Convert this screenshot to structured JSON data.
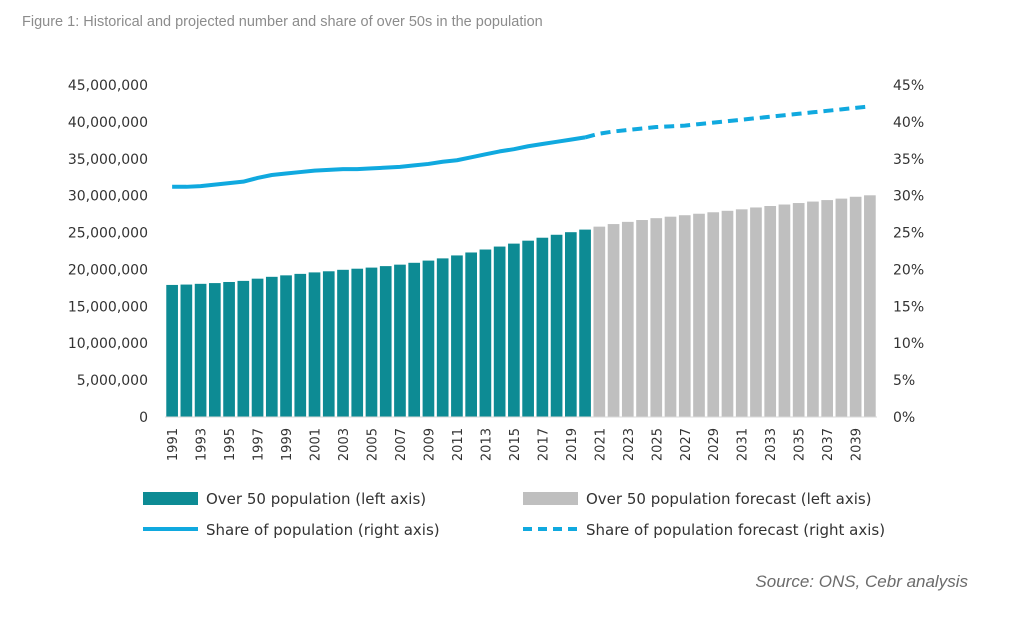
{
  "figure": {
    "title": "Figure 1: Historical and projected number and share of over 50s in the population",
    "source": "Source: ONS, Cebr analysis"
  },
  "colors": {
    "historical_bar": "#0d8b94",
    "forecast_bar": "#bfbfbf",
    "share_line": "#10a9df"
  },
  "chart_data": {
    "type": "bar",
    "x": [
      1991,
      1992,
      1993,
      1994,
      1995,
      1996,
      1997,
      1998,
      1999,
      2000,
      2001,
      2002,
      2003,
      2004,
      2005,
      2006,
      2007,
      2008,
      2009,
      2010,
      2011,
      2012,
      2013,
      2014,
      2015,
      2016,
      2017,
      2018,
      2019,
      2020,
      2021,
      2022,
      2023,
      2024,
      2025,
      2026,
      2027,
      2028,
      2029,
      2030,
      2031,
      2032,
      2033,
      2034,
      2035,
      2036,
      2037,
      2038,
      2039,
      2040
    ],
    "x_tick_labels": [
      "1991",
      "1993",
      "1995",
      "1997",
      "1999",
      "2001",
      "2003",
      "2005",
      "2007",
      "2009",
      "2011",
      "2013",
      "2015",
      "2017",
      "2019",
      "2021",
      "2023",
      "2025",
      "2027",
      "2029",
      "2031",
      "2033",
      "2035",
      "2037",
      "2039"
    ],
    "y_left": {
      "range": [
        0,
        45000000
      ],
      "ticks": [
        "0",
        "5,000,000",
        "10,000,000",
        "15,000,000",
        "20,000,000",
        "25,000,000",
        "30,000,000",
        "35,000,000",
        "40,000,000",
        "45,000,000"
      ]
    },
    "y_right": {
      "range": [
        0,
        45
      ],
      "ticks": [
        "0%",
        "5%",
        "10%",
        "15%",
        "20%",
        "25%",
        "30%",
        "35%",
        "40%",
        "45%"
      ]
    },
    "grid": false,
    "legend_position": "bottom",
    "series": [
      {
        "name": "Over 50 population (left axis)",
        "type": "bar",
        "axis": "left",
        "x": [
          1991,
          1992,
          1993,
          1994,
          1995,
          1996,
          1997,
          1998,
          1999,
          2000,
          2001,
          2002,
          2003,
          2004,
          2005,
          2006,
          2007,
          2008,
          2009,
          2010,
          2011,
          2012,
          2013,
          2014,
          2015,
          2016,
          2017,
          2018,
          2019,
          2020
        ],
        "values": [
          17900000,
          17950000,
          18050000,
          18150000,
          18300000,
          18450000,
          18750000,
          19000000,
          19200000,
          19400000,
          19600000,
          19750000,
          19950000,
          20100000,
          20250000,
          20450000,
          20650000,
          20900000,
          21200000,
          21500000,
          21900000,
          22300000,
          22700000,
          23100000,
          23500000,
          23900000,
          24300000,
          24700000,
          25050000,
          25400000
        ]
      },
      {
        "name": "Over 50 population forecast (left axis)",
        "type": "bar",
        "axis": "left",
        "x": [
          2021,
          2022,
          2023,
          2024,
          2025,
          2026,
          2027,
          2028,
          2029,
          2030,
          2031,
          2032,
          2033,
          2034,
          2035,
          2036,
          2037,
          2038,
          2039,
          2040
        ],
        "values": [
          25800000,
          26150000,
          26450000,
          26700000,
          26950000,
          27150000,
          27350000,
          27550000,
          27750000,
          27950000,
          28150000,
          28400000,
          28600000,
          28800000,
          29000000,
          29200000,
          29400000,
          29600000,
          29850000,
          30050000
        ]
      },
      {
        "name": "Share of population (right axis)",
        "type": "line",
        "axis": "right",
        "x": [
          1991,
          1992,
          1993,
          1994,
          1995,
          1996,
          1997,
          1998,
          1999,
          2000,
          2001,
          2002,
          2003,
          2004,
          2005,
          2006,
          2007,
          2008,
          2009,
          2010,
          2011,
          2012,
          2013,
          2014,
          2015,
          2016,
          2017,
          2018,
          2019,
          2020
        ],
        "values": [
          31.2,
          31.2,
          31.3,
          31.5,
          31.7,
          31.9,
          32.4,
          32.8,
          33.0,
          33.2,
          33.4,
          33.5,
          33.6,
          33.6,
          33.7,
          33.8,
          33.9,
          34.1,
          34.3,
          34.6,
          34.8,
          35.2,
          35.6,
          36.0,
          36.3,
          36.7,
          37.0,
          37.3,
          37.6,
          37.9
        ]
      },
      {
        "name": "Share of population forecast (right axis)",
        "type": "line",
        "axis": "right",
        "style": "dashed",
        "x": [
          2020,
          2021,
          2022,
          2023,
          2024,
          2025,
          2026,
          2027,
          2028,
          2029,
          2030,
          2031,
          2032,
          2033,
          2034,
          2035,
          2036,
          2037,
          2038,
          2039,
          2040
        ],
        "values": [
          37.9,
          38.4,
          38.7,
          38.9,
          39.1,
          39.3,
          39.4,
          39.5,
          39.7,
          39.9,
          40.1,
          40.3,
          40.5,
          40.7,
          40.9,
          41.1,
          41.3,
          41.5,
          41.7,
          41.9,
          42.1
        ]
      }
    ]
  }
}
